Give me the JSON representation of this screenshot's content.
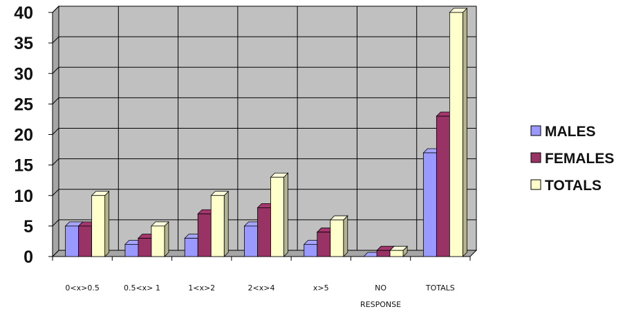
{
  "chart_data": {
    "type": "bar",
    "style": "3d-clustered-column",
    "categories": [
      [
        "0<x>0.5"
      ],
      [
        "0.5<x>  1"
      ],
      [
        "1<x>2"
      ],
      [
        "2<x>4"
      ],
      [
        "x>5"
      ],
      [
        "NO",
        "RESPONSE"
      ],
      [
        "TOTALS"
      ]
    ],
    "series": [
      {
        "name": "MALES",
        "values": [
          5,
          2,
          3,
          5,
          2,
          0,
          17
        ],
        "color": "#9999FF"
      },
      {
        "name": "FEMALES",
        "values": [
          5,
          3,
          7,
          8,
          4,
          1,
          23
        ],
        "color": "#993366"
      },
      {
        "name": "TOTALS",
        "values": [
          10,
          5,
          10,
          13,
          6,
          1,
          40
        ],
        "color": "#FFFFCC"
      }
    ],
    "ylim": [
      0,
      40
    ],
    "yticks": [
      0,
      5,
      10,
      15,
      20,
      25,
      30,
      35,
      40
    ],
    "grid": true,
    "plot_background": "#C0C0C0",
    "legend_position": "right",
    "title": "",
    "xlabel": "",
    "ylabel": ""
  }
}
